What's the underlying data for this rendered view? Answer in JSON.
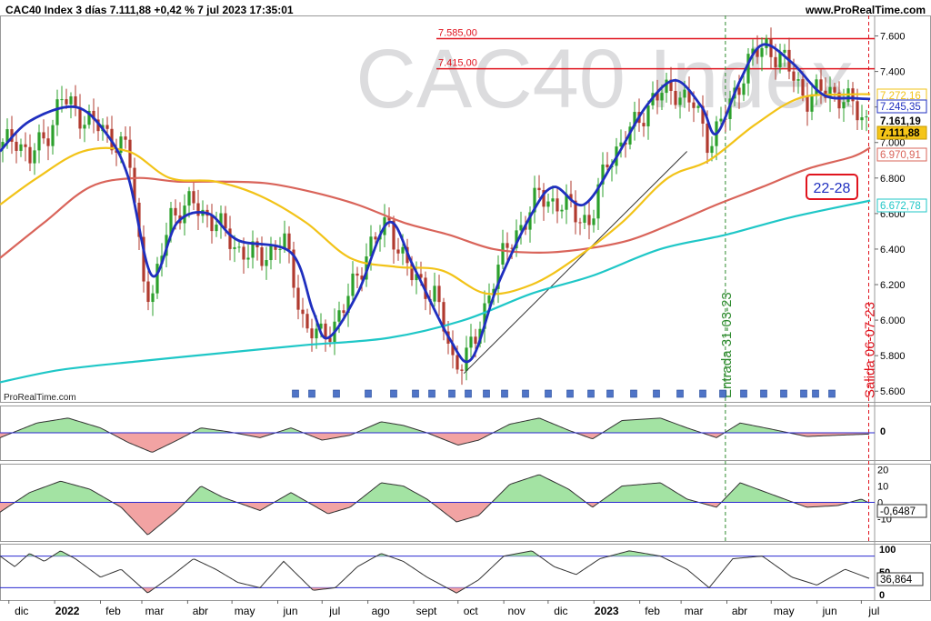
{
  "header": {
    "title": "CAC40 Index 3 días 7.111,88 +0,42 % 7 jul 2023 17:35:01",
    "site": "www.ProRealTime.com",
    "watermark_main": "CAC40 Index",
    "watermark_sub": "ProRealTime.com"
  },
  "colors": {
    "candle_up": "#2ca02c",
    "candle_down": "#b03a2e",
    "fast_ma": "#1f2fbf",
    "mid_ma": "#f2c318",
    "slow_ma": "#d9645a",
    "long_ma": "#1fc7c7",
    "resistance": "#e0141e",
    "entry_line": "#2e8b2e",
    "exit_line": "#e0141e",
    "osc_pos": "#a3e3a3",
    "osc_neg": "#f2a3a3"
  },
  "chart_data": [
    {
      "type": "candlestick",
      "name": "price",
      "ylim": [
        5550,
        7700
      ],
      "y_ticks": [
        "7.600",
        "7.400",
        "7.200",
        "7.000",
        "6.800",
        "6.600",
        "6.400",
        "6.200",
        "6.000",
        "5.800",
        "5.600"
      ],
      "x_labels": [
        "dic",
        "2022",
        "feb",
        "mar",
        "abr",
        "may",
        "jun",
        "jul",
        "ago",
        "sept",
        "oct",
        "nov",
        "dic",
        "2023",
        "feb",
        "mar",
        "abr",
        "may",
        "jun",
        "jul"
      ],
      "close_path": [
        [
          "2021-11-25",
          6950
        ],
        [
          "2021-12-05",
          7050
        ],
        [
          "2021-12-15",
          6900
        ],
        [
          "2021-12-30",
          7100
        ],
        [
          "2022-01-05",
          7250
        ],
        [
          "2022-01-20",
          7150
        ],
        [
          "2022-02-05",
          7050
        ],
        [
          "2022-02-20",
          6950
        ],
        [
          "2022-03-01",
          6300
        ],
        [
          "2022-03-08",
          6100
        ],
        [
          "2022-03-20",
          6600
        ],
        [
          "2022-04-05",
          6650
        ],
        [
          "2022-04-20",
          6550
        ],
        [
          "2022-05-05",
          6400
        ],
        [
          "2022-05-20",
          6350
        ],
        [
          "2022-06-05",
          6450
        ],
        [
          "2022-06-20",
          5950
        ],
        [
          "2022-07-01",
          5900
        ],
        [
          "2022-07-15",
          6050
        ],
        [
          "2022-08-01",
          6400
        ],
        [
          "2022-08-15",
          6550
        ],
        [
          "2022-08-30",
          6250
        ],
        [
          "2022-09-15",
          6150
        ],
        [
          "2022-09-28",
          5750
        ],
        [
          "2022-10-12",
          5850
        ],
        [
          "2022-10-25",
          6250
        ],
        [
          "2022-11-10",
          6500
        ],
        [
          "2022-11-25",
          6700
        ],
        [
          "2022-12-10",
          6650
        ],
        [
          "2022-12-30",
          6550
        ],
        [
          "2023-01-10",
          6900
        ],
        [
          "2023-01-25",
          7050
        ],
        [
          "2023-02-10",
          7250
        ],
        [
          "2023-02-25",
          7300
        ],
        [
          "2023-03-10",
          7200
        ],
        [
          "2023-03-20",
          7000
        ],
        [
          "2023-03-31",
          7150
        ],
        [
          "2023-04-15",
          7450
        ],
        [
          "2023-04-28",
          7550
        ],
        [
          "2023-05-10",
          7450
        ],
        [
          "2023-05-25",
          7250
        ],
        [
          "2023-06-10",
          7300
        ],
        [
          "2023-06-25",
          7200
        ],
        [
          "2023-07-07",
          7112
        ]
      ],
      "moving_averages": [
        {
          "name": "fast",
          "color_key": "fast_ma",
          "points": [
            [
              "2021-11-25",
              6950
            ],
            [
              "2021-12-15",
              7120
            ],
            [
              "2022-01-15",
              7200
            ],
            [
              "2022-02-05",
              7050
            ],
            [
              "2022-02-20",
              6800
            ],
            [
              "2022-03-08",
              6250
            ],
            [
              "2022-03-25",
              6550
            ],
            [
              "2022-04-15",
              6600
            ],
            [
              "2022-05-05",
              6450
            ],
            [
              "2022-06-10",
              6380
            ],
            [
              "2022-06-25",
              6050
            ],
            [
              "2022-07-05",
              5900
            ],
            [
              "2022-07-25",
              6150
            ],
            [
              "2022-08-15",
              6550
            ],
            [
              "2022-09-01",
              6300
            ],
            [
              "2022-09-25",
              5900
            ],
            [
              "2022-10-10",
              5780
            ],
            [
              "2022-10-28",
              6200
            ],
            [
              "2022-11-20",
              6600
            ],
            [
              "2022-12-05",
              6750
            ],
            [
              "2022-12-25",
              6650
            ],
            [
              "2023-01-15",
              6900
            ],
            [
              "2023-02-05",
              7200
            ],
            [
              "2023-02-25",
              7350
            ],
            [
              "2023-03-15",
              7200
            ],
            [
              "2023-03-25",
              7050
            ],
            [
              "2023-04-10",
              7350
            ],
            [
              "2023-04-25",
              7550
            ],
            [
              "2023-05-15",
              7450
            ],
            [
              "2023-06-05",
              7270
            ],
            [
              "2023-06-25",
              7250
            ],
            [
              "2023-07-07",
              7245
            ]
          ]
        },
        {
          "name": "mid",
          "color_key": "mid_ma",
          "points": [
            [
              "2021-11-25",
              6650
            ],
            [
              "2021-12-20",
              6800
            ],
            [
              "2022-01-20",
              6950
            ],
            [
              "2022-02-20",
              6950
            ],
            [
              "2022-03-20",
              6800
            ],
            [
              "2022-04-20",
              6780
            ],
            [
              "2022-05-20",
              6700
            ],
            [
              "2022-06-20",
              6550
            ],
            [
              "2022-07-20",
              6350
            ],
            [
              "2022-08-20",
              6300
            ],
            [
              "2022-09-20",
              6280
            ],
            [
              "2022-10-20",
              6150
            ],
            [
              "2022-11-20",
              6200
            ],
            [
              "2022-12-20",
              6350
            ],
            [
              "2023-01-20",
              6550
            ],
            [
              "2023-02-20",
              6800
            ],
            [
              "2023-03-20",
              6900
            ],
            [
              "2023-04-20",
              7100
            ],
            [
              "2023-05-20",
              7250
            ],
            [
              "2023-06-20",
              7270
            ],
            [
              "2023-07-07",
              7272
            ]
          ]
        },
        {
          "name": "slow",
          "color_key": "slow_ma",
          "points": [
            [
              "2021-11-25",
              6350
            ],
            [
              "2021-12-25",
              6550
            ],
            [
              "2022-01-25",
              6750
            ],
            [
              "2022-02-25",
              6800
            ],
            [
              "2022-03-25",
              6780
            ],
            [
              "2022-04-25",
              6780
            ],
            [
              "2022-05-25",
              6770
            ],
            [
              "2022-06-25",
              6720
            ],
            [
              "2022-07-25",
              6650
            ],
            [
              "2022-08-25",
              6550
            ],
            [
              "2022-09-25",
              6480
            ],
            [
              "2022-10-25",
              6400
            ],
            [
              "2022-11-25",
              6380
            ],
            [
              "2022-12-25",
              6400
            ],
            [
              "2023-01-25",
              6450
            ],
            [
              "2023-02-25",
              6550
            ],
            [
              "2023-03-25",
              6650
            ],
            [
              "2023-04-25",
              6750
            ],
            [
              "2023-05-25",
              6850
            ],
            [
              "2023-06-25",
              6920
            ],
            [
              "2023-07-07",
              6971
            ]
          ]
        },
        {
          "name": "long",
          "color_key": "long_ma",
          "points": [
            [
              "2021-11-25",
              5650
            ],
            [
              "2022-01-05",
              5720
            ],
            [
              "2022-03-01",
              5770
            ],
            [
              "2022-05-01",
              5820
            ],
            [
              "2022-06-20",
              5860
            ],
            [
              "2022-08-15",
              5900
            ],
            [
              "2022-10-05",
              6000
            ],
            [
              "2022-11-20",
              6150
            ],
            [
              "2022-12-31",
              6250
            ],
            [
              "2023-02-15",
              6400
            ],
            [
              "2023-03-31",
              6480
            ],
            [
              "2023-05-15",
              6580
            ],
            [
              "2023-07-07",
              6673
            ]
          ]
        }
      ],
      "trendline": [
        [
          "2022-10-05",
          5700
        ],
        [
          "2023-03-05",
          6950
        ]
      ],
      "resistance_levels": [
        {
          "value": 7585,
          "label": "7.585,00",
          "start": "2022-09-25"
        },
        {
          "value": 7415,
          "label": "7.415,00",
          "start": "2022-09-25"
        }
      ],
      "vertical_markers": [
        {
          "date": "2023-03-31",
          "label": "Entrada 31-03-23",
          "color_key": "entry_line"
        },
        {
          "date": "2023-07-06",
          "label": "Salida 06-07-23",
          "color_key": "exit_line"
        }
      ],
      "value_labels": [
        {
          "text": "7.272,16",
          "color_key": "mid_ma"
        },
        {
          "text": "7.245,35",
          "color_key": "fast_ma"
        },
        {
          "text": "7.161,19",
          "color_key": "plain"
        },
        {
          "text": "7.111,88",
          "color_key": "current"
        },
        {
          "text": "6.970,91",
          "color_key": "slow_ma"
        },
        {
          "text": "6.672,78",
          "color_key": "long_ma"
        }
      ],
      "badge": "22-28"
    },
    {
      "type": "area",
      "name": "oscillator-1",
      "y_ticks": [
        "0"
      ],
      "zero_line": 0,
      "points": [
        [
          "2021-11-25",
          -4
        ],
        [
          "2021-12-20",
          8
        ],
        [
          "2022-01-10",
          12
        ],
        [
          "2022-02-01",
          4
        ],
        [
          "2022-02-20",
          -8
        ],
        [
          "2022-03-08",
          -16
        ],
        [
          "2022-03-25",
          -6
        ],
        [
          "2022-04-10",
          4
        ],
        [
          "2022-04-28",
          1
        ],
        [
          "2022-05-20",
          -4
        ],
        [
          "2022-06-10",
          4
        ],
        [
          "2022-07-01",
          -6
        ],
        [
          "2022-07-20",
          -2
        ],
        [
          "2022-08-10",
          9
        ],
        [
          "2022-08-25",
          6
        ],
        [
          "2022-09-10",
          0
        ],
        [
          "2022-10-01",
          -10
        ],
        [
          "2022-10-15",
          -6
        ],
        [
          "2022-11-05",
          7
        ],
        [
          "2022-11-25",
          12
        ],
        [
          "2022-12-15",
          2
        ],
        [
          "2022-12-31",
          -5
        ],
        [
          "2023-01-20",
          10
        ],
        [
          "2023-02-15",
          12
        ],
        [
          "2023-03-05",
          4
        ],
        [
          "2023-03-25",
          -4
        ],
        [
          "2023-04-10",
          8
        ],
        [
          "2023-05-01",
          3
        ],
        [
          "2023-05-25",
          -3
        ],
        [
          "2023-06-15",
          -2
        ],
        [
          "2023-07-07",
          -1
        ]
      ]
    },
    {
      "type": "area",
      "name": "oscillator-2",
      "y_ticks": [
        "20",
        "10",
        "0",
        "-10"
      ],
      "ylim": [
        -22,
        22
      ],
      "value_label": "-0,6487",
      "points": [
        [
          "2021-11-25",
          -6
        ],
        [
          "2021-12-15",
          6
        ],
        [
          "2022-01-05",
          13
        ],
        [
          "2022-01-25",
          8
        ],
        [
          "2022-02-15",
          -3
        ],
        [
          "2022-03-05",
          -20
        ],
        [
          "2022-03-25",
          -5
        ],
        [
          "2022-04-10",
          10
        ],
        [
          "2022-04-25",
          3
        ],
        [
          "2022-05-20",
          -5
        ],
        [
          "2022-06-10",
          6
        ],
        [
          "2022-07-05",
          -7
        ],
        [
          "2022-07-20",
          -3
        ],
        [
          "2022-08-10",
          12
        ],
        [
          "2022-08-25",
          10
        ],
        [
          "2022-09-10",
          2
        ],
        [
          "2022-09-30",
          -12
        ],
        [
          "2022-10-15",
          -8
        ],
        [
          "2022-11-05",
          11
        ],
        [
          "2022-11-25",
          17
        ],
        [
          "2022-12-15",
          8
        ],
        [
          "2022-12-31",
          -3
        ],
        [
          "2023-01-20",
          10
        ],
        [
          "2023-02-15",
          12
        ],
        [
          "2023-03-05",
          2
        ],
        [
          "2023-03-25",
          -3
        ],
        [
          "2023-04-10",
          12
        ],
        [
          "2023-05-01",
          5
        ],
        [
          "2023-05-25",
          -3
        ],
        [
          "2023-06-15",
          -2
        ],
        [
          "2023-07-01",
          2
        ],
        [
          "2023-07-07",
          -0.65
        ]
      ]
    },
    {
      "type": "line",
      "name": "oscillator-3",
      "y_ticks": [
        "100",
        "50",
        "0"
      ],
      "ylim": [
        0,
        100
      ],
      "value_label": "36,864",
      "points": [
        [
          "2021-11-25",
          80
        ],
        [
          "2021-12-05",
          60
        ],
        [
          "2021-12-15",
          85
        ],
        [
          "2021-12-25",
          70
        ],
        [
          "2022-01-05",
          90
        ],
        [
          "2022-01-15",
          75
        ],
        [
          "2022-02-01",
          40
        ],
        [
          "2022-02-15",
          55
        ],
        [
          "2022-03-05",
          10
        ],
        [
          "2022-03-20",
          40
        ],
        [
          "2022-04-05",
          75
        ],
        [
          "2022-04-20",
          55
        ],
        [
          "2022-05-05",
          30
        ],
        [
          "2022-05-20",
          20
        ],
        [
          "2022-06-05",
          70
        ],
        [
          "2022-06-25",
          15
        ],
        [
          "2022-07-10",
          20
        ],
        [
          "2022-07-25",
          60
        ],
        [
          "2022-08-10",
          85
        ],
        [
          "2022-08-25",
          70
        ],
        [
          "2022-09-10",
          40
        ],
        [
          "2022-09-30",
          10
        ],
        [
          "2022-10-15",
          35
        ],
        [
          "2022-11-01",
          80
        ],
        [
          "2022-11-20",
          90
        ],
        [
          "2022-12-05",
          60
        ],
        [
          "2022-12-20",
          45
        ],
        [
          "2023-01-05",
          75
        ],
        [
          "2023-01-25",
          90
        ],
        [
          "2023-02-15",
          80
        ],
        [
          "2023-03-05",
          55
        ],
        [
          "2023-03-20",
          20
        ],
        [
          "2023-04-05",
          75
        ],
        [
          "2023-04-25",
          80
        ],
        [
          "2023-05-15",
          40
        ],
        [
          "2023-06-01",
          25
        ],
        [
          "2023-06-20",
          55
        ],
        [
          "2023-07-07",
          37
        ]
      ]
    }
  ]
}
